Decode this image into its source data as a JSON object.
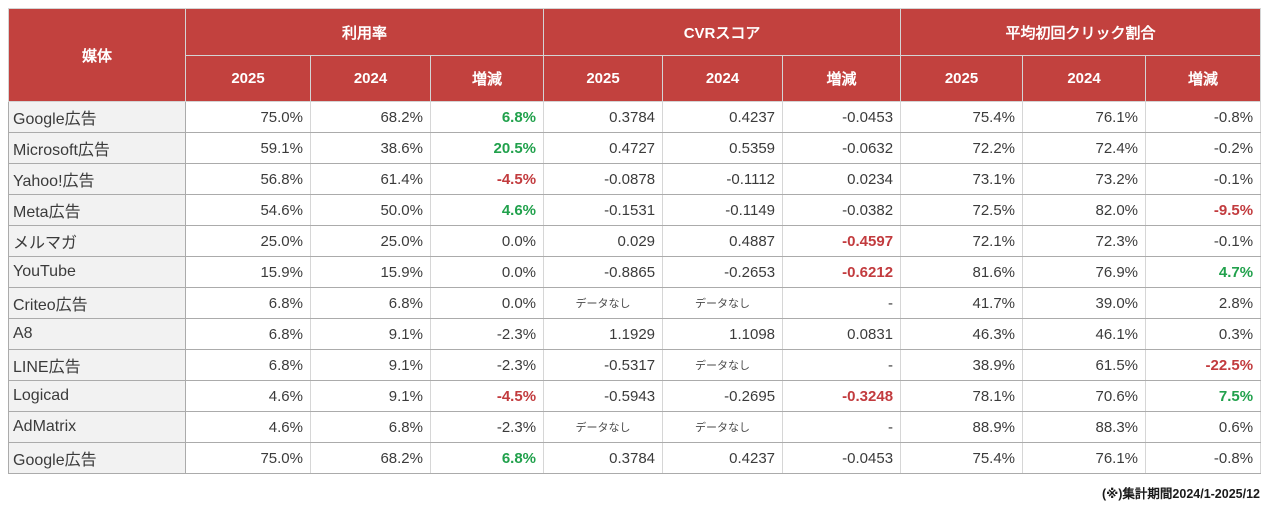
{
  "page": {
    "footnote": "(※)集計期間2024/1-2025/12"
  },
  "colors": {
    "header_bg": "#C2413E",
    "header_text": "#FFFFFF",
    "positive_green": "#21A14C",
    "negative_red": "#C23B3E",
    "row_label_bg": "#F2F2F2",
    "body_text": "#3B3B3B"
  },
  "chart_data": {
    "type": "table",
    "header": {
      "media_label": "媒体",
      "groups": [
        {
          "label": "利用率",
          "subcols": [
            "2025",
            "2024",
            "増減"
          ]
        },
        {
          "label": "CVRスコア",
          "subcols": [
            "2025",
            "2024",
            "増減"
          ]
        },
        {
          "label": "平均初回クリック割合",
          "subcols": [
            "2025",
            "2024",
            "増減"
          ]
        }
      ]
    },
    "rows": [
      {
        "media": "Google広告",
        "cells": [
          {
            "v": "75.0%"
          },
          {
            "v": "68.2%"
          },
          {
            "v": "6.8%",
            "s": "up"
          },
          {
            "v": "0.3784"
          },
          {
            "v": "0.4237"
          },
          {
            "v": "-0.0453"
          },
          {
            "v": "75.4%"
          },
          {
            "v": "76.1%"
          },
          {
            "v": "-0.8%"
          }
        ]
      },
      {
        "media": "Microsoft広告",
        "cells": [
          {
            "v": "59.1%"
          },
          {
            "v": "38.6%"
          },
          {
            "v": "20.5%",
            "s": "up"
          },
          {
            "v": "0.4727"
          },
          {
            "v": "0.5359"
          },
          {
            "v": "-0.0632"
          },
          {
            "v": "72.2%"
          },
          {
            "v": "72.4%"
          },
          {
            "v": "-0.2%"
          }
        ]
      },
      {
        "media": "Yahoo!広告",
        "cells": [
          {
            "v": "56.8%"
          },
          {
            "v": "61.4%"
          },
          {
            "v": "-4.5%",
            "s": "down"
          },
          {
            "v": "-0.0878"
          },
          {
            "v": "-0.1112"
          },
          {
            "v": "0.0234"
          },
          {
            "v": "73.1%"
          },
          {
            "v": "73.2%"
          },
          {
            "v": "-0.1%"
          }
        ]
      },
      {
        "media": "Meta広告",
        "cells": [
          {
            "v": "54.6%"
          },
          {
            "v": "50.0%"
          },
          {
            "v": "4.6%",
            "s": "up"
          },
          {
            "v": "-0.1531"
          },
          {
            "v": "-0.1149"
          },
          {
            "v": "-0.0382"
          },
          {
            "v": "72.5%"
          },
          {
            "v": "82.0%"
          },
          {
            "v": "-9.5%",
            "s": "down"
          }
        ]
      },
      {
        "media": "メルマガ",
        "cells": [
          {
            "v": "25.0%"
          },
          {
            "v": "25.0%"
          },
          {
            "v": "0.0%"
          },
          {
            "v": "0.029"
          },
          {
            "v": "0.4887"
          },
          {
            "v": "-0.4597",
            "s": "down"
          },
          {
            "v": "72.1%"
          },
          {
            "v": "72.3%"
          },
          {
            "v": "-0.1%"
          }
        ]
      },
      {
        "media": "YouTube",
        "cells": [
          {
            "v": "15.9%"
          },
          {
            "v": "15.9%"
          },
          {
            "v": "0.0%"
          },
          {
            "v": "-0.8865"
          },
          {
            "v": "-0.2653"
          },
          {
            "v": "-0.6212",
            "s": "down"
          },
          {
            "v": "81.6%"
          },
          {
            "v": "76.9%"
          },
          {
            "v": "4.7%",
            "s": "up"
          }
        ]
      },
      {
        "media": "Criteo広告",
        "cells": [
          {
            "v": "6.8%"
          },
          {
            "v": "6.8%"
          },
          {
            "v": "0.0%"
          },
          {
            "v": "データなし",
            "s": "nodata"
          },
          {
            "v": "データなし",
            "s": "nodata"
          },
          {
            "v": "-"
          },
          {
            "v": "41.7%"
          },
          {
            "v": "39.0%"
          },
          {
            "v": "2.8%"
          }
        ]
      },
      {
        "media": "A8",
        "cells": [
          {
            "v": "6.8%"
          },
          {
            "v": "9.1%"
          },
          {
            "v": "-2.3%"
          },
          {
            "v": "1.1929"
          },
          {
            "v": "1.1098"
          },
          {
            "v": "0.0831"
          },
          {
            "v": "46.3%"
          },
          {
            "v": "46.1%"
          },
          {
            "v": "0.3%"
          }
        ]
      },
      {
        "media": "LINE広告",
        "cells": [
          {
            "v": "6.8%"
          },
          {
            "v": "9.1%"
          },
          {
            "v": "-2.3%"
          },
          {
            "v": "-0.5317"
          },
          {
            "v": "データなし",
            "s": "nodata"
          },
          {
            "v": "-"
          },
          {
            "v": "38.9%"
          },
          {
            "v": "61.5%"
          },
          {
            "v": "-22.5%",
            "s": "down"
          }
        ]
      },
      {
        "media": "Logicad",
        "cells": [
          {
            "v": "4.6%"
          },
          {
            "v": "9.1%"
          },
          {
            "v": "-4.5%",
            "s": "down"
          },
          {
            "v": "-0.5943"
          },
          {
            "v": "-0.2695"
          },
          {
            "v": "-0.3248",
            "s": "down"
          },
          {
            "v": "78.1%"
          },
          {
            "v": "70.6%"
          },
          {
            "v": "7.5%",
            "s": "up"
          }
        ]
      },
      {
        "media": "AdMatrix",
        "cells": [
          {
            "v": "4.6%"
          },
          {
            "v": "6.8%"
          },
          {
            "v": "-2.3%"
          },
          {
            "v": "データなし",
            "s": "nodata"
          },
          {
            "v": "データなし",
            "s": "nodata"
          },
          {
            "v": "-"
          },
          {
            "v": "88.9%"
          },
          {
            "v": "88.3%"
          },
          {
            "v": "0.6%"
          }
        ]
      },
      {
        "media": "Google広告",
        "cells": [
          {
            "v": "75.0%"
          },
          {
            "v": "68.2%"
          },
          {
            "v": "6.8%",
            "s": "up"
          },
          {
            "v": "0.3784"
          },
          {
            "v": "0.4237"
          },
          {
            "v": "-0.0453"
          },
          {
            "v": "75.4%"
          },
          {
            "v": "76.1%"
          },
          {
            "v": "-0.8%"
          }
        ]
      }
    ]
  }
}
